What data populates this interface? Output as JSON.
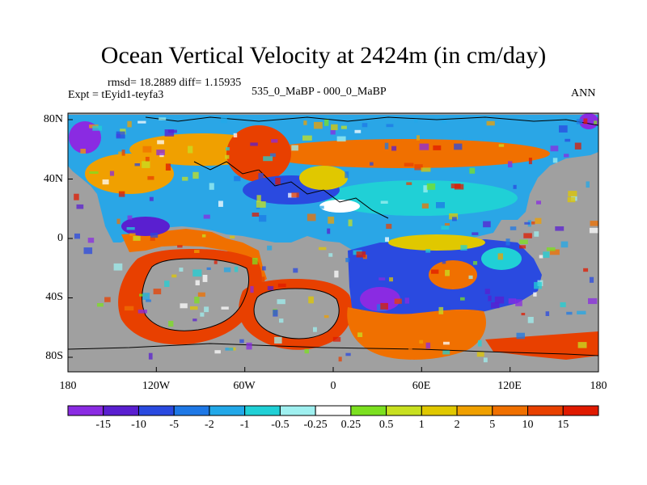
{
  "title": "Ocean Vertical Velocity at 2424m (in cm/day)",
  "stats_text": "rmsd= 18.2889 diff= 1.15935",
  "expt_text": "Expt = tEyid1-teyfa3",
  "case_text": "535_0_MaBP - 000_0_MaBP",
  "season": "ANN",
  "y_axis": {
    "ticks": [
      "80N",
      "40N",
      "0",
      "40S",
      "80S"
    ]
  },
  "x_axis": {
    "ticks": [
      "180",
      "120W",
      "60W",
      "0",
      "60E",
      "120E",
      "180"
    ]
  },
  "colorbar": {
    "labels": [
      "-15",
      "-10",
      "-5",
      "-2",
      "-1",
      "-0.5",
      "-0.25",
      "0.25",
      "0.5",
      "1",
      "2",
      "5",
      "10",
      "15"
    ],
    "colors": [
      "#8a2be2",
      "#5a1fd0",
      "#2a4ae0",
      "#1e78e6",
      "#22a8e8",
      "#20d0d6",
      "#9ff0f0",
      "#ffffff",
      "#7ce020",
      "#c8e020",
      "#e0c800",
      "#f0a000",
      "#f07000",
      "#e84000",
      "#e01a00"
    ]
  },
  "colors": {
    "land": "#a0a0a0",
    "ocean_base": "#2aa6e6"
  }
}
